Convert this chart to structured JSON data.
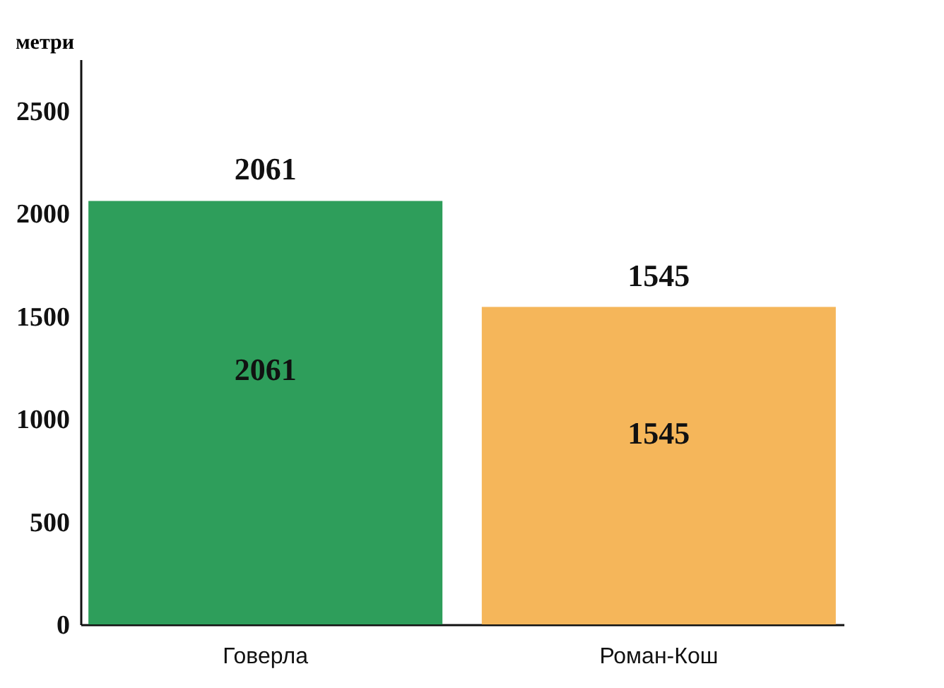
{
  "chart_data": {
    "type": "bar",
    "ylabel": "метри",
    "categories": [
      "Говерла",
      "Роман-Кош"
    ],
    "values": [
      2061,
      1545
    ],
    "colors": [
      "#2e9e5b",
      "#f5b65a"
    ],
    "ylim": [
      0,
      2750
    ],
    "yticks": [
      0,
      500,
      1000,
      1500,
      2000,
      2500
    ],
    "value_labels": [
      "2061",
      "1545"
    ],
    "annotations": [
      {
        "text": "2061",
        "x": "Говерла",
        "y": 2061
      },
      {
        "text": "1545",
        "x": "Роман-Кош",
        "y": 1545
      }
    ]
  }
}
